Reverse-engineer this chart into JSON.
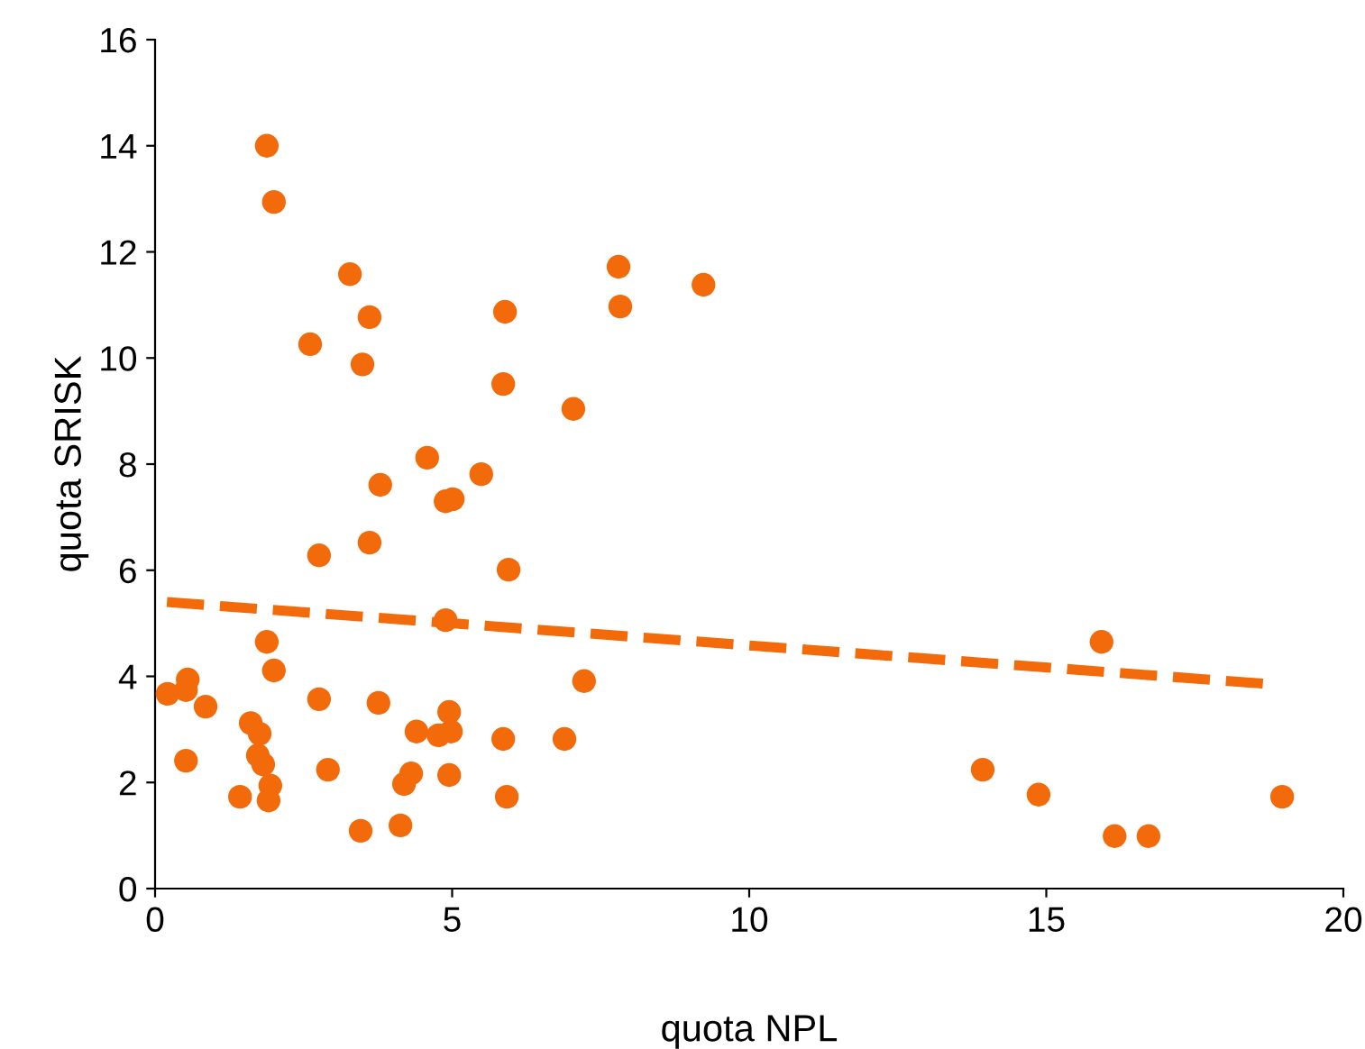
{
  "chart_data": {
    "type": "scatter",
    "xlabel": "quota NPL",
    "ylabel": "quota SRISK",
    "xlim": [
      0,
      20
    ],
    "ylim": [
      0,
      16
    ],
    "xticks": [
      0,
      5,
      10,
      15,
      20
    ],
    "yticks": [
      0,
      2,
      4,
      6,
      8,
      10,
      12,
      14,
      16
    ],
    "grid": false,
    "legend": false,
    "marker": "circle",
    "series": [
      {
        "color": "#f26a0a",
        "x": [
          1.88,
          2.0,
          3.28,
          2.61,
          3.61,
          3.49,
          5.89,
          7.8,
          7.83,
          9.23,
          5.86,
          7.04,
          4.58,
          5.49,
          3.79,
          4.89,
          5.01,
          2.76,
          3.61,
          5.95,
          4.89,
          1.88,
          2.0,
          15.93,
          7.22,
          0.55,
          0.52,
          0.21,
          0.85,
          2.76,
          3.76,
          4.95,
          1.61,
          1.76,
          4.4,
          4.77,
          4.98,
          5.86,
          6.89,
          1.73,
          1.82,
          0.52,
          2.91,
          4.31,
          4.95,
          13.93,
          4.19,
          1.94,
          1.91,
          1.43,
          5.92,
          14.87,
          18.97,
          3.46,
          4.13,
          16.15,
          16.72
        ],
        "values": [
          14.0,
          12.94,
          11.58,
          10.26,
          10.77,
          9.88,
          10.87,
          11.72,
          10.97,
          11.38,
          9.51,
          9.04,
          8.12,
          7.81,
          7.61,
          7.3,
          7.34,
          6.28,
          6.52,
          6.01,
          5.06,
          4.65,
          4.11,
          4.65,
          3.91,
          3.94,
          3.74,
          3.67,
          3.43,
          3.57,
          3.5,
          3.33,
          3.12,
          2.92,
          2.96,
          2.89,
          2.96,
          2.82,
          2.82,
          2.51,
          2.34,
          2.41,
          2.24,
          2.17,
          2.14,
          2.24,
          1.97,
          1.94,
          1.66,
          1.73,
          1.73,
          1.77,
          1.73,
          1.09,
          1.19,
          0.99,
          0.99
        ]
      },
      {
        "type": "line",
        "color": "#f26a0a",
        "line_style": "dashed",
        "marker": "none",
        "x": [
          0.2,
          18.8
        ],
        "values": [
          5.4,
          3.85
        ]
      }
    ]
  }
}
